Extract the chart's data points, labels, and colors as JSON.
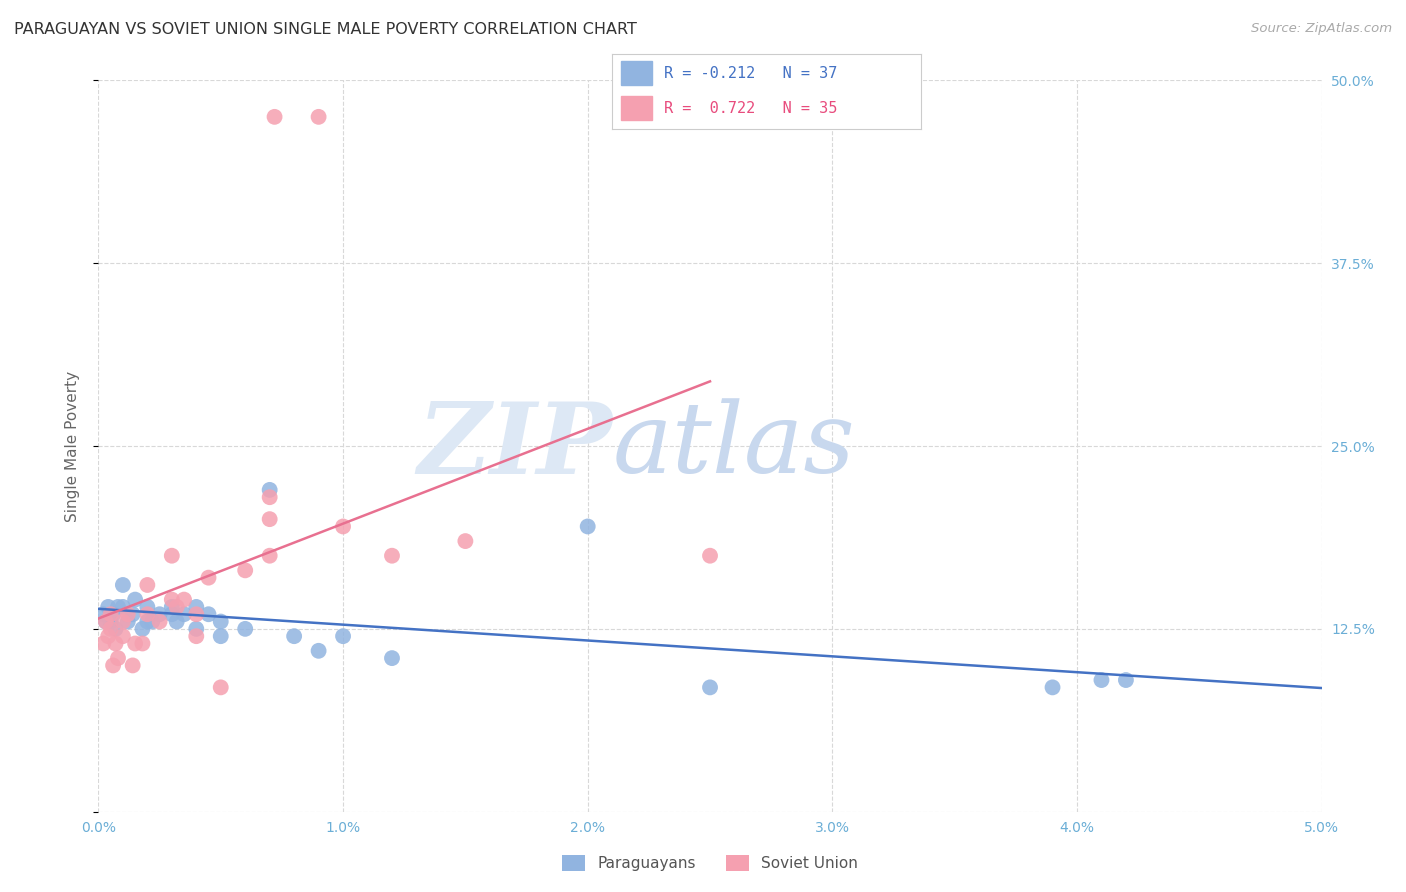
{
  "title": "PARAGUAYAN VS SOVIET UNION SINGLE MALE POVERTY CORRELATION CHART",
  "source": "Source: ZipAtlas.com",
  "ylabel": "Single Male Poverty",
  "xlim": [
    0.0,
    0.05
  ],
  "ylim": [
    0.0,
    0.5
  ],
  "yticks": [
    0.0,
    0.125,
    0.25,
    0.375,
    0.5
  ],
  "ytick_labels": [
    "",
    "12.5%",
    "25.0%",
    "37.5%",
    "50.0%"
  ],
  "xticks": [
    0.0,
    0.01,
    0.02,
    0.03,
    0.04,
    0.05
  ],
  "xtick_labels": [
    "0.0%",
    "1.0%",
    "2.0%",
    "3.0%",
    "4.0%",
    "5.0%"
  ],
  "paraguayan_R": -0.212,
  "paraguayan_N": 37,
  "soviet_R": 0.722,
  "soviet_N": 35,
  "paraguayan_color": "#91b4e0",
  "soviet_color": "#f5a0b0",
  "paraguayan_line_color": "#4472c4",
  "soviet_line_color": "#e87090",
  "paraguayan_x": [
    0.0002,
    0.0003,
    0.0004,
    0.0005,
    0.0006,
    0.0007,
    0.0008,
    0.001,
    0.001,
    0.0012,
    0.0014,
    0.0015,
    0.0018,
    0.002,
    0.002,
    0.0022,
    0.0025,
    0.003,
    0.003,
    0.0032,
    0.0035,
    0.004,
    0.004,
    0.0045,
    0.005,
    0.005,
    0.006,
    0.007,
    0.008,
    0.009,
    0.01,
    0.012,
    0.02,
    0.025,
    0.039,
    0.041,
    0.042
  ],
  "paraguayan_y": [
    0.135,
    0.13,
    0.14,
    0.13,
    0.135,
    0.125,
    0.14,
    0.14,
    0.155,
    0.13,
    0.135,
    0.145,
    0.125,
    0.13,
    0.14,
    0.13,
    0.135,
    0.135,
    0.14,
    0.13,
    0.135,
    0.14,
    0.125,
    0.135,
    0.13,
    0.12,
    0.125,
    0.22,
    0.12,
    0.11,
    0.12,
    0.105,
    0.195,
    0.085,
    0.085,
    0.09,
    0.09
  ],
  "soviet_x": [
    0.0002,
    0.0003,
    0.0004,
    0.0005,
    0.0005,
    0.0006,
    0.0007,
    0.0008,
    0.001,
    0.001,
    0.0012,
    0.0014,
    0.0015,
    0.0018,
    0.002,
    0.002,
    0.0025,
    0.003,
    0.003,
    0.0032,
    0.0035,
    0.004,
    0.004,
    0.0045,
    0.005,
    0.006,
    0.007,
    0.007,
    0.007,
    0.0072,
    0.009,
    0.01,
    0.012,
    0.015,
    0.025
  ],
  "soviet_y": [
    0.115,
    0.13,
    0.12,
    0.135,
    0.125,
    0.1,
    0.115,
    0.105,
    0.13,
    0.12,
    0.135,
    0.1,
    0.115,
    0.115,
    0.135,
    0.155,
    0.13,
    0.145,
    0.175,
    0.14,
    0.145,
    0.135,
    0.12,
    0.16,
    0.085,
    0.165,
    0.175,
    0.2,
    0.215,
    0.475,
    0.475,
    0.195,
    0.175,
    0.185,
    0.175
  ],
  "watermark_zip": "ZIP",
  "watermark_atlas": "atlas",
  "watermark_color_zip": "#dde8f5",
  "watermark_color_atlas": "#c8d8ee",
  "background_color": "#ffffff",
  "grid_color": "#d8d8d8",
  "title_color": "#333333",
  "source_color": "#aaaaaa",
  "tick_color": "#6baed6",
  "ylabel_color": "#666666"
}
